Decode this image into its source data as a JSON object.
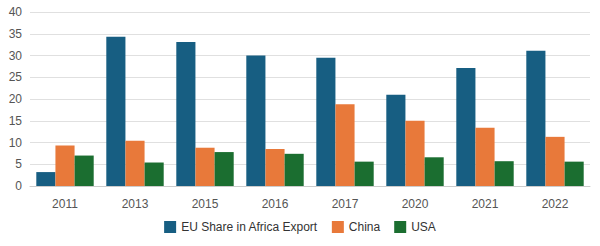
{
  "chart_data": {
    "type": "bar",
    "categories": [
      "2011",
      "2013",
      "2015",
      "2016",
      "2017",
      "2020",
      "2021",
      "2022"
    ],
    "series": [
      {
        "name": "EU Share in Africa Export",
        "color": "#175e82",
        "values": [
          3.2,
          34.3,
          33.1,
          30.0,
          29.5,
          21.0,
          27.1,
          31.1
        ]
      },
      {
        "name": "China",
        "color": "#e8793a",
        "values": [
          9.3,
          10.4,
          8.8,
          8.5,
          18.8,
          15.0,
          13.4,
          11.3
        ]
      },
      {
        "name": "USA",
        "color": "#1b6e30",
        "values": [
          7.0,
          5.4,
          7.8,
          7.4,
          5.6,
          6.6,
          5.7,
          5.6
        ]
      }
    ],
    "ylim": [
      0,
      40
    ],
    "yticks": [
      0,
      5,
      10,
      15,
      20,
      25,
      30,
      35,
      40
    ],
    "grid": true,
    "legend": "bottom"
  }
}
